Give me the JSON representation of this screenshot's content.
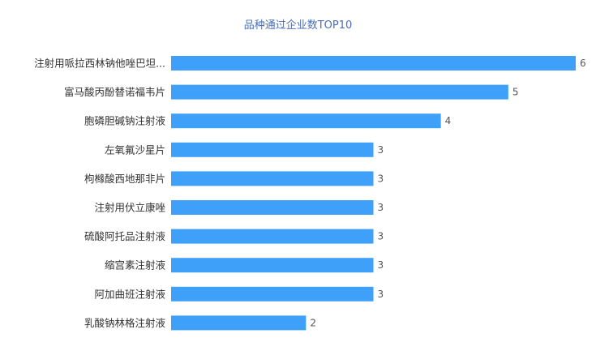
{
  "chart_data": {
    "type": "bar",
    "orientation": "horizontal",
    "title": "品种通过企业数TOP10",
    "categories": [
      "注射用哌拉西林钠他唑巴坦...",
      "富马酸丙酚替诺福韦片",
      "胞磷胆碱钠注射液",
      "左氧氟沙星片",
      "枸橼酸西地那非片",
      "注射用伏立康唑",
      "硫酸阿托品注射液",
      "缩宫素注射液",
      "阿加曲班注射液",
      "乳酸钠林格注射液"
    ],
    "values": [
      6,
      5,
      4,
      3,
      3,
      3,
      3,
      3,
      3,
      2
    ],
    "xlim": [
      0,
      6
    ],
    "grid": false,
    "bar_color": "#3fa0fa"
  }
}
